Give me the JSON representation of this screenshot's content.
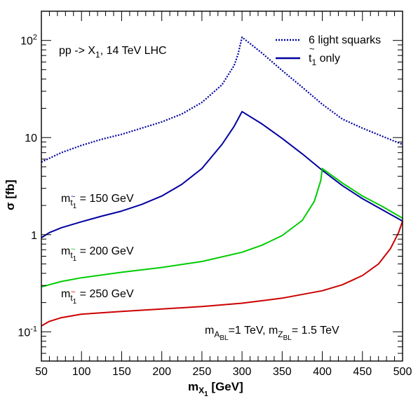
{
  "chart_data": {
    "type": "line",
    "xlabel": {
      "main": "m",
      "sub": "X",
      "subsub": "1",
      "unit": " [GeV]"
    },
    "ylabel": "σ [fb]",
    "xlim": [
      50,
      500
    ],
    "ylim": [
      0.05,
      200
    ],
    "yscale": "log",
    "grid": false,
    "x_ticks": [
      50,
      100,
      150,
      200,
      250,
      300,
      350,
      400,
      450,
      500
    ],
    "y_ticks": [
      {
        "value": 0.1,
        "mantissa": "10",
        "exp": "-1"
      },
      {
        "value": 1,
        "mantissa": "1",
        "exp": ""
      },
      {
        "value": 10,
        "mantissa": "10",
        "exp": ""
      },
      {
        "value": 100,
        "mantissa": "10",
        "exp": "2"
      }
    ],
    "legend": {
      "position": "top-right",
      "entries": [
        {
          "label": "6 light squarks",
          "style": "dotted",
          "color": "#0000a0"
        },
        {
          "label_main": "t",
          "label_sub": "1",
          "label_rest": " only",
          "style": "solid",
          "color": "#0000a0"
        }
      ]
    },
    "annotations": {
      "process": {
        "pre": "pp -> X",
        "sub": "1",
        "post": ", 14 TeV LHC"
      },
      "masses": {
        "m1": "m",
        "s1": "A",
        "ss1": "BL",
        "r1": "=1 TeV, m",
        "s2": "Z",
        "ss2": "BL",
        "r2": "= 1.5 TeV"
      }
    },
    "series": [
      {
        "name": "6 light squarks",
        "color": "#0000a0",
        "style": "dotted",
        "x": [
          50,
          75,
          100,
          125,
          150,
          175,
          200,
          225,
          250,
          275,
          290,
          295,
          300,
          325,
          350,
          375,
          400,
          425,
          450,
          475,
          500
        ],
        "y": [
          5.6,
          7.0,
          8.3,
          9.6,
          10.8,
          12.5,
          14.5,
          17.5,
          23,
          35,
          55,
          72,
          108,
          74,
          49,
          33,
          22,
          15.5,
          12.5,
          10.3,
          8.5
        ]
      },
      {
        "name": "m_t1 = 150 GeV",
        "color": "#0000a0",
        "style": "solid",
        "x": [
          50,
          60,
          75,
          100,
          125,
          150,
          175,
          200,
          225,
          250,
          275,
          290,
          295,
          300,
          325,
          350,
          375,
          400,
          425,
          450,
          475,
          500
        ],
        "y": [
          0.93,
          1.05,
          1.18,
          1.36,
          1.55,
          1.75,
          2.05,
          2.5,
          3.3,
          4.8,
          8.5,
          13,
          15.5,
          18.5,
          13.8,
          9.8,
          6.8,
          4.6,
          3.2,
          2.35,
          1.8,
          1.38
        ]
      },
      {
        "name": "m_t1 = 200 GeV",
        "color": "#00cc00",
        "style": "solid",
        "x": [
          50,
          75,
          100,
          150,
          200,
          250,
          300,
          325,
          350,
          375,
          390,
          398,
          400,
          425,
          450,
          475,
          500
        ],
        "y": [
          0.29,
          0.33,
          0.36,
          0.41,
          0.46,
          0.53,
          0.66,
          0.78,
          0.98,
          1.4,
          2.2,
          3.6,
          4.8,
          3.4,
          2.5,
          1.95,
          1.48
        ]
      },
      {
        "name": "m_t1 = 250 GeV",
        "color": "#cc0000",
        "style": "solid",
        "x": [
          50,
          60,
          75,
          100,
          150,
          200,
          250,
          300,
          350,
          400,
          425,
          450,
          470,
          485,
          495,
          500
        ],
        "y": [
          0.115,
          0.128,
          0.14,
          0.152,
          0.162,
          0.172,
          0.182,
          0.197,
          0.222,
          0.265,
          0.305,
          0.38,
          0.5,
          0.72,
          1.05,
          1.38
        ]
      }
    ],
    "series_labels": [
      {
        "pre": "m",
        "sub": "t",
        "subsub": "1",
        "post": " = 150 GeV",
        "color": "#0000a0"
      },
      {
        "pre": "m",
        "sub": "t",
        "subsub": "1",
        "post": " = 200 GeV",
        "color": "#00cc00"
      },
      {
        "pre": "m",
        "sub": "t",
        "subsub": "1",
        "post": " = 250 GeV",
        "color": "#cc0000"
      }
    ]
  }
}
